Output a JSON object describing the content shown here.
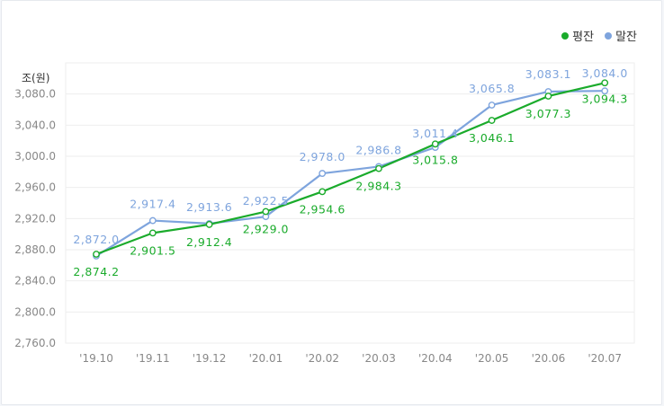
{
  "chart_data": {
    "type": "line",
    "categories": [
      "'19.10",
      "'19.11",
      "'19.12",
      "'20.01",
      "'20.02",
      "'20.03",
      "'20.04",
      "'20.05",
      "'20.06",
      "'20.07"
    ],
    "ylabel": "조(원)",
    "ylim": [
      2760,
      3120
    ],
    "yticks": [
      2760,
      2800,
      2840,
      2880,
      2920,
      2960,
      3000,
      3040,
      3080
    ],
    "ytick_labels": [
      "2,760.0",
      "2,800.0",
      "2,840.0",
      "2,880.0",
      "2,920.0",
      "2,960.0",
      "3,000.0",
      "3,040.0",
      "3,080.0"
    ],
    "legend_position": "top-right",
    "grid": true,
    "series": [
      {
        "name": "평잔",
        "color": "#1aab2b",
        "values": [
          2874.2,
          2901.5,
          2912.4,
          2929.0,
          2954.6,
          2984.3,
          3015.8,
          3046.1,
          3077.3,
          3094.3
        ],
        "labels": [
          "2,874.2",
          "2,901.5",
          "2,912.4",
          "2,929.0",
          "2,954.6",
          "2,984.3",
          "3,015.8",
          "3,046.1",
          "3,077.3",
          "3,094.3"
        ]
      },
      {
        "name": "말잔",
        "color": "#7ea4dd",
        "values": [
          2872.0,
          2917.4,
          2913.6,
          2922.5,
          2978.0,
          2986.8,
          3011.4,
          3065.8,
          3083.1,
          3084.0
        ],
        "labels": [
          "2,872.0",
          "2,917.4",
          "2,913.6",
          "2,922.5",
          "2,978.0",
          "2,986.8",
          "3,011.4",
          "3,065.8",
          "3,083.1",
          "3,084.0"
        ]
      }
    ]
  }
}
